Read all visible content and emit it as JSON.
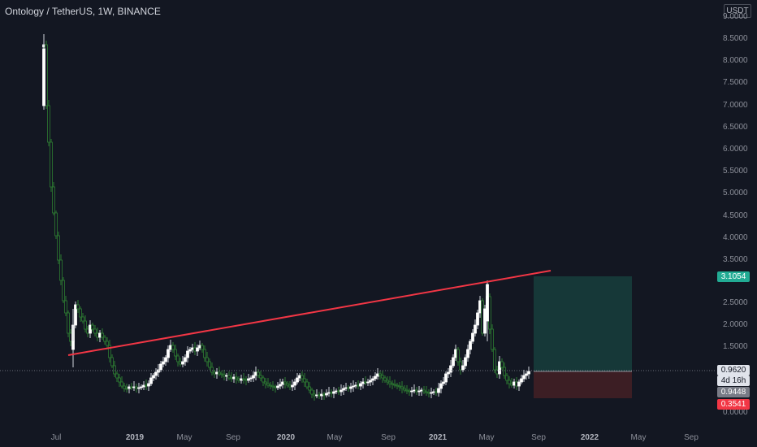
{
  "header": {
    "title": "Ontology / TetherUS, 1W, BINANCE",
    "currency_badge": "USDT"
  },
  "y_axis": {
    "ticks": [
      "9.0000",
      "8.5000",
      "8.0000",
      "7.5000",
      "7.0000",
      "6.5000",
      "6.0000",
      "5.5000",
      "5.0000",
      "4.5000",
      "4.0000",
      "3.5000",
      "2.5000",
      "2.0000",
      "1.5000",
      "0.5000",
      "0.0000"
    ]
  },
  "x_axis": {
    "ticks": [
      {
        "label": "Jul",
        "bold": false
      },
      {
        "label": "2019",
        "bold": true
      },
      {
        "label": "May",
        "bold": false
      },
      {
        "label": "Sep",
        "bold": false
      },
      {
        "label": "2020",
        "bold": true
      },
      {
        "label": "May",
        "bold": false
      },
      {
        "label": "Sep",
        "bold": false
      },
      {
        "label": "2021",
        "bold": true
      },
      {
        "label": "May",
        "bold": false
      },
      {
        "label": "Sep",
        "bold": false
      },
      {
        "label": "2022",
        "bold": true
      },
      {
        "label": "May",
        "bold": false
      },
      {
        "label": "Sep",
        "bold": false
      }
    ]
  },
  "price_tags": {
    "target": "3.1054",
    "last_price": "0.9620",
    "countdown": "4d 16h",
    "entry": "0.9448",
    "stop": "0.3541"
  },
  "colors": {
    "up": "#26a69a",
    "candle_up_body": "#ffffff",
    "candle_down": "#2e7d32",
    "trendline": "#f23645",
    "profit_zone": "#1f4f4d",
    "loss_zone": "#4a2226",
    "target_tag": "#22ab94",
    "stop_tag": "#f23645"
  },
  "icons": {
    "currency": "currency-badge"
  }
}
